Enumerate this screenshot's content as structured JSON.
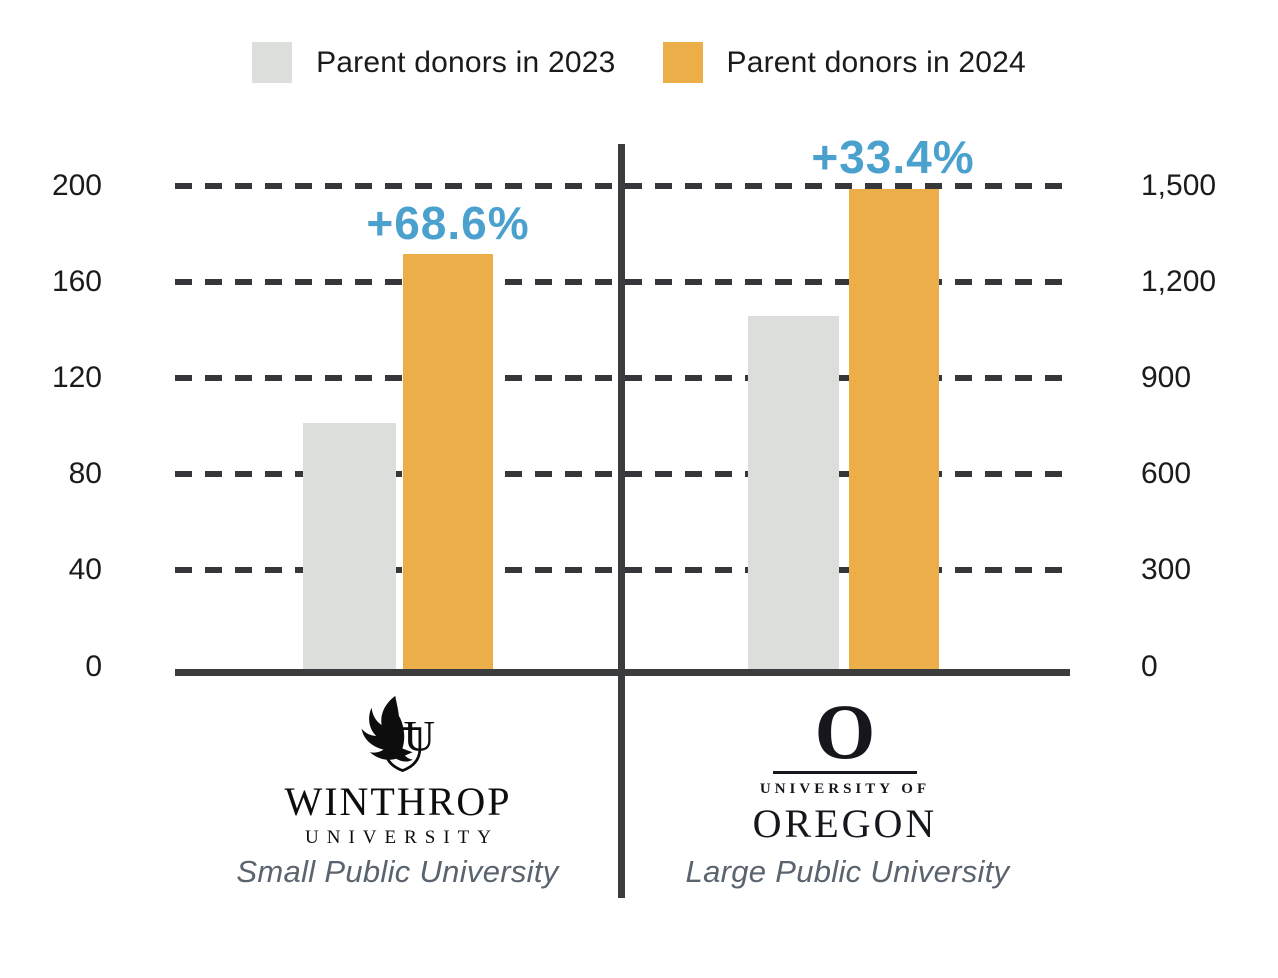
{
  "legend": {
    "items": [
      {
        "label": "Parent donors in 2023",
        "color": "#dcdedb"
      },
      {
        "label": "Parent donors in 2024",
        "color": "#ebae49"
      }
    ]
  },
  "chart_data": {
    "type": "bar",
    "categories": [
      "Winthrop University — Small Public University",
      "University of Oregon — Large Public University"
    ],
    "series": [
      {
        "name": "Parent donors in 2023",
        "color": "#dcdedb",
        "values": [
          102,
          1095
        ]
      },
      {
        "name": "Parent donors in 2024",
        "color": "#ebae49",
        "values": [
          172,
          1490
        ]
      }
    ],
    "annotations": [
      {
        "text": "+68.6%",
        "color": "#4aa1ce",
        "panel": 0
      },
      {
        "text": "+33.4%",
        "color": "#4aa1ce",
        "panel": 1
      }
    ],
    "left_axis": {
      "ticks": [
        "0",
        "40",
        "80",
        "120",
        "160",
        "200"
      ],
      "range": [
        0,
        200
      ]
    },
    "right_axis": {
      "ticks": [
        "0",
        "300",
        "600",
        "900",
        "1,200",
        "1,500"
      ],
      "range": [
        0,
        1500
      ]
    },
    "panel_axis_max": [
      200,
      1500
    ],
    "grid": "horizontal dashed",
    "legend_position": "top"
  },
  "panels": [
    {
      "logo": {
        "icon": "winthrop-eagle-shield-logo",
        "wordmark": "WINTHROP",
        "subtext": "UNIVERSITY"
      },
      "caption": "Small Public University"
    },
    {
      "logo": {
        "letter": "O",
        "overline": "UNIVERSITY OF",
        "wordmark": "OREGON"
      },
      "caption": "Large Public University"
    }
  ],
  "colors": {
    "bar_orange": "#ebae49",
    "bar_gray": "#dcdedb",
    "annotation_blue": "#4aa1ce",
    "axis_dark": "#3a3c3e",
    "caption_gray": "#5a646e"
  }
}
